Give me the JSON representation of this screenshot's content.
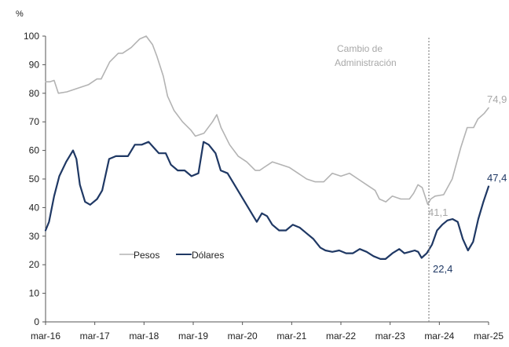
{
  "chart_data": {
    "type": "line",
    "ylabel": "%",
    "ylim": [
      0,
      100
    ],
    "yticks": [
      0,
      10,
      20,
      30,
      40,
      50,
      60,
      70,
      80,
      90,
      100
    ],
    "xticks": [
      "mar-16",
      "mar-17",
      "mar-18",
      "mar-19",
      "mar-20",
      "mar-21",
      "mar-22",
      "mar-23",
      "mar-24",
      "mar-25"
    ],
    "grid": false,
    "legend_position": "lower-left",
    "series": [
      {
        "name": "Pesos",
        "color": "#b3b3b3",
        "values": [
          [
            0,
            84
          ],
          [
            0.1,
            84
          ],
          [
            0.2,
            84.5
          ],
          [
            0.3,
            80
          ],
          [
            0.5,
            80.5
          ],
          [
            0.8,
            82
          ],
          [
            1.0,
            83
          ],
          [
            1.2,
            85
          ],
          [
            1.3,
            85
          ],
          [
            1.5,
            91
          ],
          [
            1.7,
            94
          ],
          [
            1.8,
            94
          ],
          [
            2.0,
            96
          ],
          [
            2.2,
            99
          ],
          [
            2.35,
            100
          ],
          [
            2.5,
            97
          ],
          [
            2.6,
            93
          ],
          [
            2.75,
            86
          ],
          [
            2.85,
            79
          ],
          [
            3.0,
            74
          ],
          [
            3.2,
            70
          ],
          [
            3.4,
            67
          ],
          [
            3.5,
            65
          ],
          [
            3.7,
            66
          ],
          [
            3.9,
            70
          ],
          [
            4.0,
            72.5
          ],
          [
            4.1,
            68
          ],
          [
            4.3,
            62
          ],
          [
            4.5,
            58
          ],
          [
            4.7,
            56
          ],
          [
            4.9,
            53
          ],
          [
            5.0,
            53
          ],
          [
            5.1,
            54
          ],
          [
            5.3,
            56
          ],
          [
            5.5,
            55
          ],
          [
            5.7,
            54
          ],
          [
            5.9,
            52
          ],
          [
            6.1,
            50
          ],
          [
            6.3,
            49
          ],
          [
            6.5,
            49
          ],
          [
            6.7,
            52
          ],
          [
            6.9,
            51
          ],
          [
            7.1,
            52
          ],
          [
            7.3,
            50
          ],
          [
            7.5,
            48
          ],
          [
            7.7,
            46
          ],
          [
            7.8,
            43
          ],
          [
            7.95,
            42
          ],
          [
            8.1,
            44
          ],
          [
            8.3,
            43
          ],
          [
            8.5,
            43
          ],
          [
            8.6,
            45
          ],
          [
            8.7,
            48
          ],
          [
            8.8,
            47
          ],
          [
            8.93,
            41.1
          ],
          [
            9.0,
            43
          ],
          [
            9.1,
            44
          ],
          [
            9.3,
            44.5
          ],
          [
            9.5,
            50
          ],
          [
            9.7,
            61
          ],
          [
            9.85,
            68
          ],
          [
            10.0,
            68
          ],
          [
            10.1,
            71
          ],
          [
            10.25,
            73
          ],
          [
            10.35,
            74.9
          ]
        ]
      },
      {
        "name": "Dólares",
        "color": "#1f3864",
        "values": [
          [
            0,
            32
          ],
          [
            0.1,
            35
          ],
          [
            0.25,
            44
          ],
          [
            0.4,
            51
          ],
          [
            0.6,
            56
          ],
          [
            0.8,
            60
          ],
          [
            0.9,
            57
          ],
          [
            1.0,
            48
          ],
          [
            1.15,
            42
          ],
          [
            1.3,
            41
          ],
          [
            1.5,
            43
          ],
          [
            1.65,
            46
          ],
          [
            1.85,
            57
          ],
          [
            2.05,
            58
          ],
          [
            2.25,
            58
          ],
          [
            2.4,
            58
          ],
          [
            2.6,
            62
          ],
          [
            2.8,
            62
          ],
          [
            3.0,
            63
          ],
          [
            3.15,
            61
          ],
          [
            3.3,
            59
          ],
          [
            3.5,
            59
          ],
          [
            3.65,
            55
          ],
          [
            3.85,
            53
          ],
          [
            4.05,
            53
          ],
          [
            4.25,
            51
          ],
          [
            4.45,
            52
          ],
          [
            4.6,
            63
          ],
          [
            4.75,
            62
          ],
          [
            4.95,
            59
          ],
          [
            5.1,
            53
          ],
          [
            5.3,
            52
          ],
          [
            5.5,
            48
          ],
          [
            5.7,
            44
          ],
          [
            5.9,
            40
          ],
          [
            6.05,
            37
          ],
          [
            6.15,
            35
          ],
          [
            6.3,
            38
          ],
          [
            6.45,
            37
          ],
          [
            6.6,
            34
          ],
          [
            6.8,
            32
          ],
          [
            7.0,
            32
          ],
          [
            7.2,
            34
          ],
          [
            7.4,
            33
          ],
          [
            7.6,
            31
          ],
          [
            7.8,
            29
          ],
          [
            8.0,
            26
          ],
          [
            8.15,
            25
          ],
          [
            8.35,
            24.5
          ],
          [
            8.55,
            25
          ],
          [
            8.75,
            24
          ],
          [
            8.95,
            24
          ],
          [
            9.15,
            25.5
          ],
          [
            9.35,
            24.5
          ],
          [
            9.55,
            23
          ],
          [
            9.75,
            22
          ],
          [
            9.9,
            22
          ],
          [
            10.1,
            24
          ],
          [
            10.3,
            25.5
          ],
          [
            10.45,
            24
          ],
          [
            10.6,
            24.5
          ],
          [
            10.75,
            25
          ],
          [
            10.85,
            24.5
          ],
          [
            10.95,
            22.4
          ],
          [
            11.1,
            24
          ],
          [
            11.25,
            27
          ],
          [
            11.4,
            32
          ],
          [
            11.55,
            34
          ],
          [
            11.7,
            35.5
          ],
          [
            11.85,
            36
          ],
          [
            12.0,
            35
          ],
          [
            12.15,
            29
          ],
          [
            12.3,
            25
          ],
          [
            12.45,
            28
          ],
          [
            12.6,
            36
          ],
          [
            12.75,
            42
          ],
          [
            12.9,
            47.4
          ]
        ]
      }
    ],
    "annotations": [
      {
        "text": "Cambio de\nAdministración",
        "type": "vertical-dotted-line",
        "x": "dic-23"
      },
      {
        "text": "74,9",
        "series": "Pesos",
        "point": "last"
      },
      {
        "text": "41,1",
        "series": "Pesos",
        "point": "min-after-change"
      },
      {
        "text": "47,4",
        "series": "Dólares",
        "point": "last"
      },
      {
        "text": "22,4",
        "series": "Dólares",
        "point": "min-after-change"
      }
    ],
    "annotation_texts": {
      "change_line1": "Cambio de",
      "change_line2": "Administración",
      "pesos_last": "74,9",
      "pesos_min": "41,1",
      "dolares_last": "47,4",
      "dolares_min": "22,4"
    }
  }
}
